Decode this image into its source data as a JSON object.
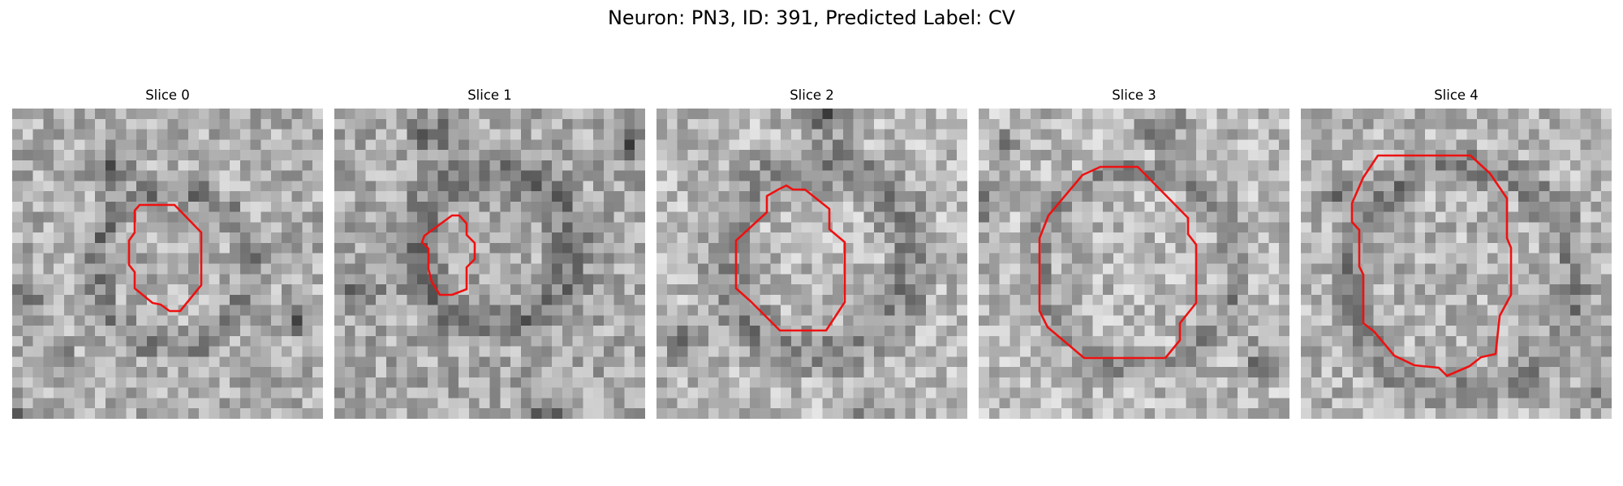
{
  "figure": {
    "title": "Neuron: PN3, ID: 391, Predicted Label: CV"
  },
  "panels": [
    {
      "label": "Slice 0"
    },
    {
      "label": "Slice 1"
    },
    {
      "label": "Slice 2"
    },
    {
      "label": "Slice 3"
    },
    {
      "label": "Slice 4"
    }
  ],
  "colors": {
    "contour": "#ee1111",
    "background": "#ffffff"
  }
}
